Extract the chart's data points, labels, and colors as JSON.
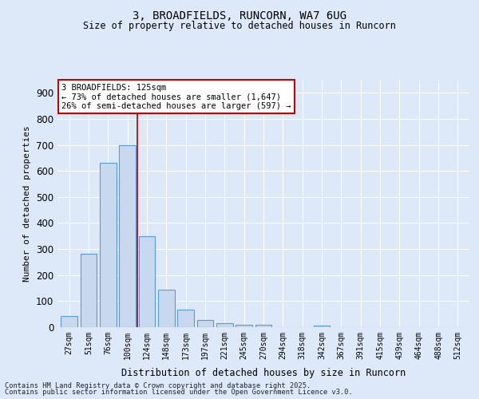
{
  "title1": "3, BROADFIELDS, RUNCORN, WA7 6UG",
  "title2": "Size of property relative to detached houses in Runcorn",
  "xlabel": "Distribution of detached houses by size in Runcorn",
  "ylabel": "Number of detached properties",
  "categories": [
    "27sqm",
    "51sqm",
    "76sqm",
    "100sqm",
    "124sqm",
    "148sqm",
    "173sqm",
    "197sqm",
    "221sqm",
    "245sqm",
    "270sqm",
    "294sqm",
    "318sqm",
    "342sqm",
    "367sqm",
    "391sqm",
    "415sqm",
    "439sqm",
    "464sqm",
    "488sqm",
    "512sqm"
  ],
  "values": [
    42,
    283,
    632,
    700,
    350,
    145,
    67,
    28,
    15,
    10,
    8,
    0,
    0,
    5,
    0,
    0,
    0,
    0,
    0,
    0,
    0
  ],
  "bar_color": "#c8d8ee",
  "bar_edge_color": "#5b9bd5",
  "vline_color": "#aa0000",
  "annotation_text": "3 BROADFIELDS: 125sqm\n← 73% of detached houses are smaller (1,647)\n26% of semi-detached houses are larger (597) →",
  "annotation_box_color": "#ffffff",
  "annotation_box_edge": "#cc0000",
  "ylim": [
    0,
    950
  ],
  "yticks": [
    0,
    100,
    200,
    300,
    400,
    500,
    600,
    700,
    800,
    900
  ],
  "background_color": "#dde8f8",
  "plot_bg_color": "#dde8f8",
  "grid_color": "#ffffff",
  "footer1": "Contains HM Land Registry data © Crown copyright and database right 2025.",
  "footer2": "Contains public sector information licensed under the Open Government Licence v3.0."
}
